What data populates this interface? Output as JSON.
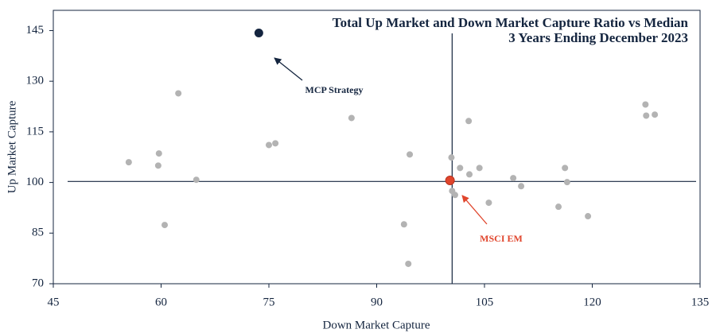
{
  "chart_data": {
    "type": "scatter",
    "title": "Total Up Market and Down Market Capture Ratio vs Median",
    "subtitle": "3 Years Ending December 2023",
    "x_label": "Down Market Capture",
    "y_label": "Up Market Capture",
    "xlim": [
      45,
      135
    ],
    "xticks": [
      45,
      60,
      75,
      90,
      105,
      120,
      135
    ],
    "ylim": [
      70,
      151
    ],
    "yticks": [
      70,
      85,
      100,
      115,
      130,
      145
    ],
    "median": {
      "x": 100.5,
      "y": 100.3
    },
    "series": [
      {
        "color": "#b3b3b3",
        "x": [
          55.5,
          59.7,
          59.6,
          60.5,
          62.4,
          64.9,
          75,
          75.9,
          86.5,
          94.6,
          93.8,
          94.4,
          100.4,
          100.5,
          100.9,
          101.6,
          102.8,
          102.9,
          104.3,
          105.6,
          109,
          110.1,
          115.3,
          116.2,
          116.5,
          119.4,
          127.4,
          127.5,
          128.7
        ],
        "values": [
          106,
          108.6,
          105,
          87.4,
          126.4,
          100.8,
          111.1,
          111.6,
          119.1,
          108.3,
          87.6,
          75.9,
          107.4,
          97.5,
          96.3,
          104.3,
          118.2,
          102.4,
          104.3,
          94,
          101.3,
          98.9,
          92.8,
          104.3,
          100.1,
          90,
          123.1,
          119.8,
          120.1
        ]
      },
      {
        "name": "MCP Strategy",
        "color": "#14253f",
        "x": [
          73.6
        ],
        "values": [
          144.3
        ]
      },
      {
        "name": "MSCI EM",
        "color": "#e0452c",
        "x": [
          100.2
        ],
        "values": [
          100.6
        ]
      }
    ]
  }
}
